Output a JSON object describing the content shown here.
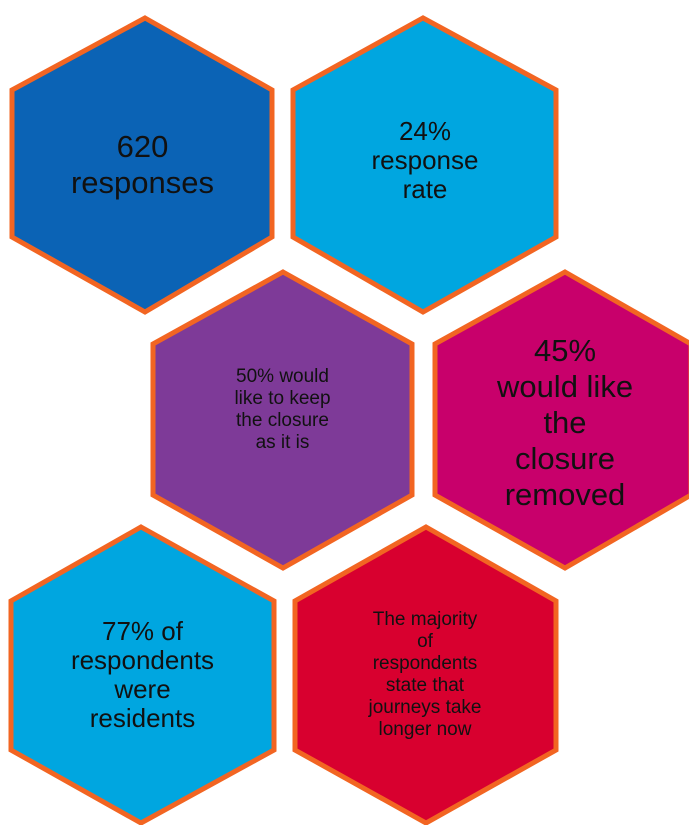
{
  "colors": {
    "border": "#F26522",
    "dark_blue": "#0B63B5",
    "light_blue": "#00A6E0",
    "purple": "#7E3A98",
    "magenta": "#C8006B",
    "red": "#D8002F",
    "text": "#111111"
  },
  "hexagons": [
    {
      "id": "responses",
      "text": "620\nresponses",
      "color": "#0B63B5"
    },
    {
      "id": "response-rate",
      "text": "24%\nresponse\nrate",
      "color": "#00A6E0"
    },
    {
      "id": "keep-closure",
      "text": "50% would\nlike to keep\nthe closure\nas it is",
      "color": "#7E3A98"
    },
    {
      "id": "remove-closure",
      "text": "45%\nwould like\nthe\nclosure\nremoved",
      "color": "#C8006B"
    },
    {
      "id": "residents",
      "text": "77% of\nrespondents\nwere\nresidents",
      "color": "#00A6E0"
    },
    {
      "id": "journeys-longer",
      "text": "The majority\nof\nrespondents\nstate that\njourneys take\nlonger now",
      "color": "#D8002F"
    }
  ]
}
